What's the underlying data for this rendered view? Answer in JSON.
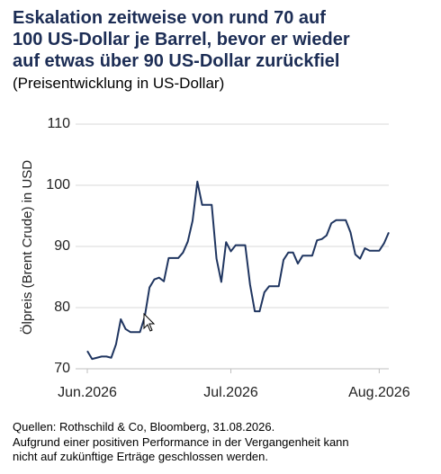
{
  "chart_data": {
    "type": "line",
    "title": [
      "Eskalation zeitweise von rund 70 auf",
      "100 US-Dollar je Barrel, bevor er wieder",
      "auf etwas über 90 US-Dollar zurückfiel"
    ],
    "subtitle": "(Preisentwicklung in US-Dollar)",
    "y_label": "Ölpreis (Brent Crude) in USD",
    "categories": [
      "Jun.2026",
      null,
      null,
      null,
      null,
      null,
      null,
      null,
      null,
      null,
      null,
      null,
      null,
      null,
      null,
      null,
      null,
      null,
      null,
      null,
      null,
      null,
      null,
      null,
      null,
      null,
      null,
      null,
      null,
      null,
      "Jul.2026",
      null,
      null,
      null,
      null,
      null,
      null,
      null,
      null,
      null,
      null,
      null,
      null,
      null,
      null,
      null,
      null,
      null,
      null,
      null,
      null,
      null,
      null,
      null,
      null,
      null,
      null,
      null,
      null,
      null,
      null,
      "Aug.2026",
      null,
      null
    ],
    "series": [
      {
        "name": "Brent Crude",
        "color": "#1f3560",
        "values": [
          72.9,
          71.6,
          71.8,
          72.0,
          72.0,
          71.8,
          74.0,
          78.1,
          76.5,
          76.0,
          76.0,
          76.0,
          78.5,
          83.3,
          84.6,
          84.9,
          84.3,
          88.1,
          88.1,
          88.1,
          89.0,
          90.8,
          94.2,
          100.6,
          96.8,
          96.8,
          96.8,
          88.0,
          84.2,
          90.7,
          89.2,
          90.2,
          90.2,
          90.2,
          83.8,
          79.4,
          79.4,
          82.5,
          83.5,
          83.5,
          83.5,
          87.8,
          89.0,
          89.0,
          87.2,
          88.5,
          88.5,
          88.5,
          91.0,
          91.2,
          91.8,
          93.8,
          94.3,
          94.3,
          94.3,
          92.3,
          88.7,
          88.0,
          89.7,
          89.3,
          89.3,
          89.3,
          90.5,
          92.3
        ]
      }
    ],
    "ylim": [
      70,
      110
    ],
    "yticks": [
      70,
      80,
      90,
      100,
      110
    ],
    "grid": true,
    "footer": [
      "Quellen: Rothschild & Co, Bloomberg, 31.08.2026.",
      "Aufgrund einer positiven Performance in der Vergangenheit kann",
      "nicht auf zukünftige Erträge geschlossen werden."
    ]
  }
}
